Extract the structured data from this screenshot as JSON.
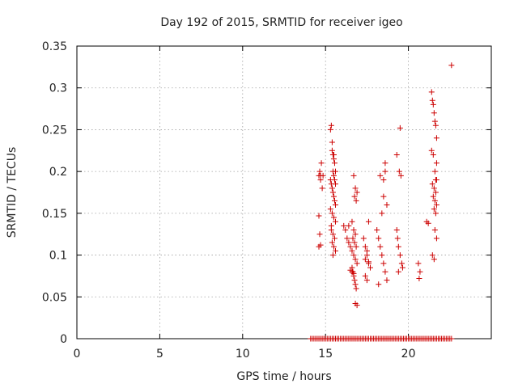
{
  "chart_data": {
    "type": "scatter",
    "title": "Day 192 of 2015, SRMTID for receiver igeo",
    "xlabel": "GPS time / hours",
    "ylabel": "SRMTID / TECUs",
    "xlim": [
      0,
      25
    ],
    "ylim": [
      0,
      0.35
    ],
    "xticks": [
      0,
      5,
      10,
      15,
      20
    ],
    "xtick_labels": [
      "0",
      "5",
      "10",
      "15",
      "20"
    ],
    "yticks": [
      0,
      0.05,
      0.1,
      0.15,
      0.2,
      0.25,
      0.3,
      0.35
    ],
    "ytick_labels": [
      "0",
      "0.05",
      "0.1",
      "0.15",
      "0.2",
      "0.25",
      "0.3",
      "0.35"
    ],
    "grid": true,
    "legend": "none",
    "colors": {
      "points": "#cc0000",
      "grid": "#a0a0a0",
      "frame": "#000000"
    },
    "series": [
      {
        "marker": "plus",
        "x": [
          14.6,
          14.65,
          14.7,
          14.75,
          14.8,
          14.85,
          14.6,
          14.65,
          14.7,
          14.6,
          14.7,
          15.3,
          15.35,
          15.4,
          15.45,
          15.5,
          15.55,
          15.6,
          15.3,
          15.35,
          15.4,
          15.45,
          15.5,
          15.55,
          15.6,
          15.3,
          15.4,
          15.5,
          15.6,
          15.35,
          15.45,
          15.55,
          15.4,
          15.5,
          15.6,
          15.45,
          15.5,
          15.55,
          15.6,
          15.4,
          15.5,
          15.35,
          15.45,
          16.1,
          16.2,
          16.3,
          16.4,
          16.5,
          16.6,
          16.7,
          16.8,
          16.9,
          16.6,
          16.65,
          16.7,
          16.75,
          16.8,
          16.85,
          16.6,
          16.7,
          16.8,
          16.65,
          16.75,
          16.85,
          16.7,
          16.8,
          16.9,
          16.75,
          16.85,
          16.4,
          16.5,
          16.6,
          16.7,
          16.8,
          16.9,
          17.3,
          17.4,
          17.5,
          17.6,
          17.7,
          17.4,
          17.5,
          17.6,
          17.5,
          17.4,
          17.6,
          18.1,
          18.2,
          18.3,
          18.4,
          18.5,
          18.6,
          18.7,
          18.2,
          18.4,
          18.5,
          18.6,
          18.3,
          18.5,
          18.6,
          18.7,
          19.3,
          19.35,
          19.4,
          19.5,
          19.6,
          19.65,
          19.4,
          19.5,
          19.3,
          19.45,
          19.55,
          20.6,
          20.7,
          20.65,
          21.1,
          21.2,
          21.4,
          21.45,
          21.5,
          21.55,
          21.6,
          21.65,
          21.7,
          21.4,
          21.5,
          21.6,
          21.7,
          21.45,
          21.55,
          21.65,
          21.5,
          21.6,
          21.7,
          21.55,
          21.65,
          21.6,
          21.7,
          21.45,
          21.55,
          21.65,
          21.7,
          22.6,
          14.1,
          14.2,
          14.3,
          14.4,
          14.5,
          14.6,
          14.7,
          14.8,
          14.9,
          15.0,
          15.1,
          15.2,
          15.3,
          15.4,
          15.5,
          15.6,
          15.7,
          15.8,
          15.9,
          16.0,
          16.1,
          16.2,
          16.3,
          16.4,
          16.5,
          16.6,
          16.7,
          16.8,
          16.9,
          17.0,
          17.1,
          17.2,
          17.3,
          17.4,
          17.5,
          17.6,
          17.7,
          17.8,
          17.9,
          18.0,
          18.1,
          18.2,
          18.3,
          18.4,
          18.5,
          18.6,
          18.7,
          18.8,
          18.9,
          19.0,
          19.1,
          19.2,
          19.3,
          19.4,
          19.5,
          19.6,
          19.7,
          19.8,
          19.9,
          20.0,
          20.1,
          20.2,
          20.3,
          20.4,
          20.5,
          20.6,
          20.7,
          20.8,
          20.9,
          21.0,
          21.1,
          21.2,
          21.3,
          21.4,
          21.5,
          21.6,
          21.7,
          21.8,
          21.9,
          22.0,
          22.1,
          22.2,
          22.3,
          22.4,
          22.5,
          22.6
        ],
        "y": [
          0.195,
          0.2,
          0.19,
          0.21,
          0.18,
          0.195,
          0.147,
          0.125,
          0.112,
          0.11,
          0.195,
          0.25,
          0.255,
          0.235,
          0.22,
          0.215,
          0.21,
          0.2,
          0.19,
          0.185,
          0.18,
          0.175,
          0.17,
          0.165,
          0.16,
          0.155,
          0.15,
          0.145,
          0.14,
          0.13,
          0.125,
          0.12,
          0.115,
          0.11,
          0.105,
          0.2,
          0.195,
          0.19,
          0.185,
          0.225,
          0.22,
          0.135,
          0.1,
          0.135,
          0.13,
          0.12,
          0.115,
          0.11,
          0.105,
          0.1,
          0.095,
          0.09,
          0.085,
          0.08,
          0.075,
          0.07,
          0.065,
          0.06,
          0.14,
          0.13,
          0.125,
          0.12,
          0.115,
          0.11,
          0.195,
          0.18,
          0.175,
          0.17,
          0.165,
          0.135,
          0.082,
          0.08,
          0.078,
          0.042,
          0.04,
          0.12,
          0.11,
          0.1,
          0.09,
          0.085,
          0.075,
          0.07,
          0.14,
          0.105,
          0.095,
          0.092,
          0.13,
          0.12,
          0.11,
          0.1,
          0.09,
          0.08,
          0.07,
          0.065,
          0.15,
          0.17,
          0.2,
          0.195,
          0.19,
          0.21,
          0.16,
          0.13,
          0.12,
          0.11,
          0.1,
          0.09,
          0.085,
          0.08,
          0.252,
          0.22,
          0.2,
          0.195,
          0.09,
          0.08,
          0.072,
          0.14,
          0.138,
          0.295,
          0.285,
          0.28,
          0.27,
          0.26,
          0.255,
          0.24,
          0.225,
          0.22,
          0.2,
          0.19,
          0.185,
          0.18,
          0.175,
          0.17,
          0.165,
          0.16,
          0.155,
          0.15,
          0.13,
          0.12,
          0.1,
          0.095,
          0.19,
          0.21,
          0.327,
          0,
          0,
          0,
          0,
          0,
          0,
          0,
          0,
          0,
          0,
          0,
          0,
          0,
          0,
          0,
          0,
          0,
          0,
          0,
          0,
          0,
          0,
          0,
          0,
          0,
          0,
          0,
          0,
          0,
          0,
          0,
          0,
          0,
          0,
          0,
          0,
          0,
          0,
          0,
          0,
          0,
          0,
          0,
          0,
          0,
          0,
          0,
          0,
          0,
          0,
          0,
          0,
          0,
          0,
          0,
          0,
          0,
          0,
          0,
          0,
          0,
          0,
          0,
          0,
          0,
          0,
          0,
          0,
          0,
          0,
          0,
          0,
          0,
          0,
          0,
          0,
          0,
          0,
          0,
          0,
          0,
          0,
          0,
          0,
          0,
          0
        ]
      }
    ]
  }
}
